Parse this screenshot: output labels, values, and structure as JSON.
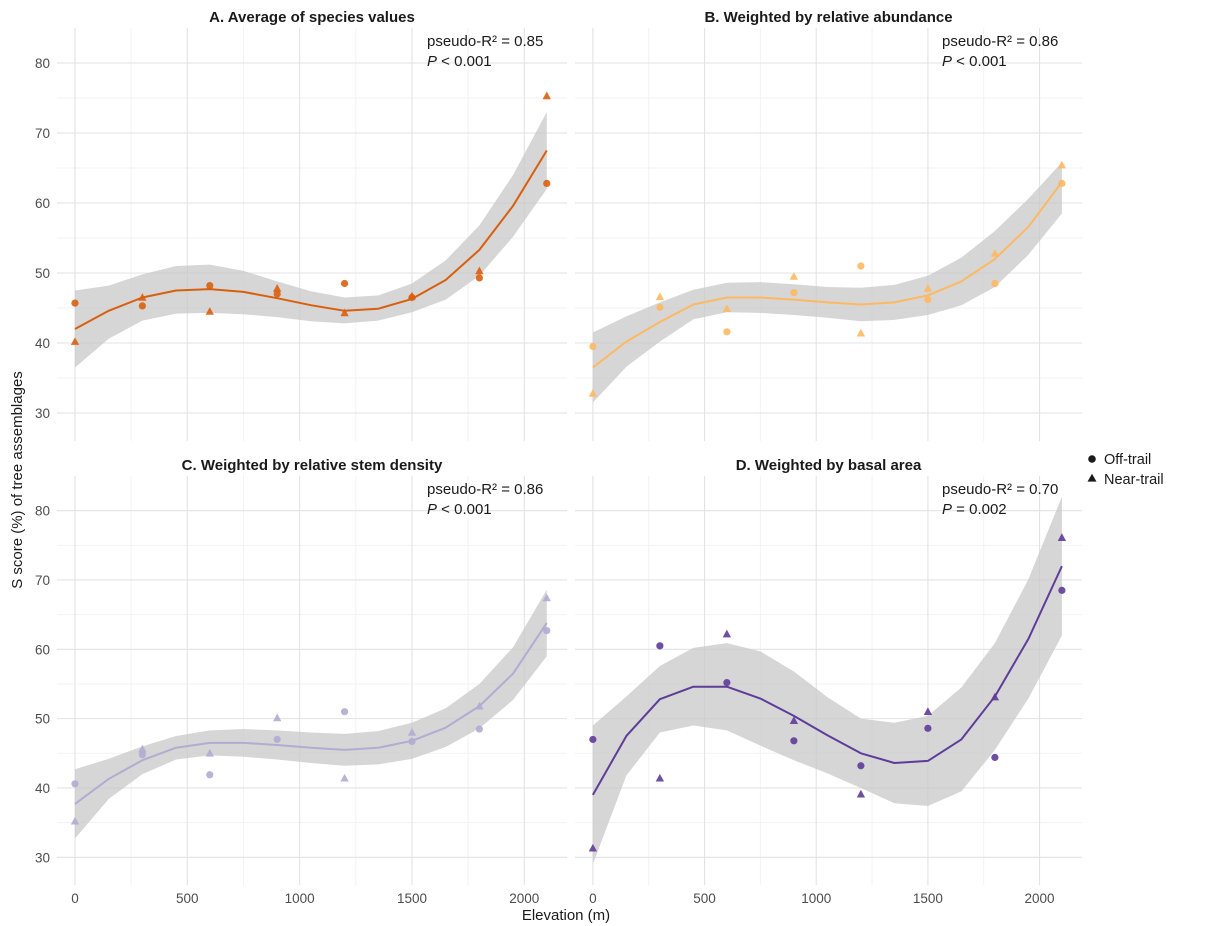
{
  "figure": {
    "ylabel": "S score (%) of tree assemblages",
    "xlabel": "Elevation (m)"
  },
  "legend": {
    "items": [
      {
        "label": "Off-trail",
        "shape": "circle"
      },
      {
        "label": "Near-trail",
        "shape": "triangle"
      }
    ]
  },
  "chart_data": [
    {
      "type": "scatter",
      "title": "A. Average of species values",
      "stat_r2": "pseudo-R² = 0.85",
      "stat_p_symbol": "P",
      "stat_p_rest": " < 0.001",
      "color": "#d95f0e",
      "xlim": [
        -80,
        2190
      ],
      "ylim": [
        26,
        85
      ],
      "xticks": [
        0,
        500,
        1000,
        1500,
        2000
      ],
      "yticks": [
        30,
        40,
        50,
        60,
        70,
        80
      ],
      "series": [
        {
          "name": "Off-trail",
          "x": [
            0,
            300,
            600,
            900,
            1200,
            1500,
            1800,
            2100
          ],
          "y": [
            45.7,
            45.3,
            48.2,
            47.0,
            48.5,
            46.5,
            49.3,
            62.8
          ]
        },
        {
          "name": "Near-trail",
          "x": [
            0,
            300,
            600,
            900,
            1200,
            1500,
            1800,
            2100
          ],
          "y": [
            40.2,
            46.5,
            44.5,
            47.8,
            44.3,
            46.7,
            50.3,
            75.3
          ]
        }
      ],
      "fit": {
        "x": [
          0,
          150,
          300,
          450,
          600,
          750,
          900,
          1050,
          1200,
          1350,
          1500,
          1650,
          1800,
          1950,
          2100
        ],
        "y": [
          42.0,
          44.6,
          46.5,
          47.5,
          47.7,
          47.3,
          46.4,
          45.4,
          44.6,
          44.9,
          46.3,
          49.0,
          53.3,
          59.6,
          67.5
        ]
      },
      "band": {
        "upper": [
          47.5,
          48.2,
          49.8,
          51.0,
          51.2,
          50.3,
          48.8,
          47.4,
          46.5,
          46.8,
          48.5,
          51.8,
          56.8,
          64.0,
          73.0
        ],
        "lower": [
          36.5,
          40.6,
          43.2,
          44.2,
          44.3,
          44.1,
          43.7,
          43.1,
          42.8,
          43.2,
          44.4,
          46.2,
          49.6,
          55.2,
          62.0
        ]
      }
    },
    {
      "type": "scatter",
      "title": "B. Weighted by relative abundance",
      "stat_r2": "pseudo-R² = 0.86",
      "stat_p_symbol": "P",
      "stat_p_rest": " < 0.001",
      "color": "#fdb863",
      "xlim": [
        -80,
        2190
      ],
      "ylim": [
        26,
        85
      ],
      "xticks": [
        0,
        500,
        1000,
        1500,
        2000
      ],
      "yticks": [
        30,
        40,
        50,
        60,
        70,
        80
      ],
      "series": [
        {
          "name": "Off-trail",
          "x": [
            0,
            300,
            600,
            900,
            1200,
            1500,
            1800,
            2100
          ],
          "y": [
            39.5,
            45.1,
            41.6,
            47.2,
            51.0,
            46.2,
            48.5,
            62.8
          ]
        },
        {
          "name": "Near-trail",
          "x": [
            0,
            300,
            600,
            900,
            1200,
            1500,
            1800,
            2100
          ],
          "y": [
            32.8,
            46.6,
            44.9,
            49.5,
            41.4,
            47.8,
            52.8,
            65.4
          ]
        }
      ],
      "fit": {
        "x": [
          0,
          150,
          300,
          450,
          600,
          750,
          900,
          1050,
          1200,
          1350,
          1500,
          1650,
          1800,
          1950,
          2100
        ],
        "y": [
          36.5,
          40.2,
          43.0,
          45.5,
          46.5,
          46.5,
          46.2,
          45.8,
          45.5,
          45.8,
          46.8,
          48.8,
          52.0,
          56.6,
          63.0
        ]
      },
      "band": {
        "upper": [
          41.5,
          43.8,
          45.8,
          47.6,
          48.6,
          48.7,
          48.4,
          48.0,
          47.9,
          48.3,
          49.6,
          52.2,
          56.0,
          60.6,
          65.8
        ],
        "lower": [
          31.5,
          36.6,
          40.2,
          43.4,
          44.4,
          44.3,
          44.0,
          43.6,
          43.1,
          43.3,
          44.0,
          45.4,
          48.0,
          52.6,
          58.5
        ]
      }
    },
    {
      "type": "scatter",
      "title": "C. Weighted by relative stem density",
      "stat_r2": "pseudo-R² = 0.86",
      "stat_p_symbol": "P",
      "stat_p_rest": " < 0.001",
      "color": "#b2abd2",
      "xlim": [
        -80,
        2190
      ],
      "ylim": [
        26,
        85
      ],
      "xticks": [
        0,
        500,
        1000,
        1500,
        2000
      ],
      "yticks": [
        30,
        40,
        50,
        60,
        70,
        80
      ],
      "series": [
        {
          "name": "Off-trail",
          "x": [
            0,
            300,
            600,
            900,
            1200,
            1500,
            1800,
            2100
          ],
          "y": [
            40.6,
            44.8,
            41.9,
            47.0,
            51.0,
            46.7,
            48.5,
            62.7
          ]
        },
        {
          "name": "Near-trail",
          "x": [
            0,
            300,
            600,
            900,
            1200,
            1500,
            1800,
            2100
          ],
          "y": [
            35.2,
            45.6,
            45.0,
            50.1,
            41.4,
            48.0,
            51.8,
            67.4
          ]
        }
      ],
      "fit": {
        "x": [
          0,
          150,
          300,
          450,
          600,
          750,
          900,
          1050,
          1200,
          1350,
          1500,
          1650,
          1800,
          1950,
          2100
        ],
        "y": [
          37.7,
          41.3,
          44.0,
          45.8,
          46.5,
          46.5,
          46.2,
          45.8,
          45.5,
          45.8,
          46.8,
          48.7,
          51.8,
          56.5,
          63.8
        ]
      },
      "band": {
        "upper": [
          42.7,
          44.2,
          46.0,
          47.5,
          48.3,
          48.5,
          48.3,
          48.0,
          47.8,
          48.2,
          49.4,
          51.5,
          55.0,
          60.3,
          68.6
        ],
        "lower": [
          32.7,
          38.4,
          42.0,
          44.1,
          44.7,
          44.5,
          44.1,
          43.6,
          43.2,
          43.4,
          44.2,
          45.9,
          48.6,
          52.7,
          59.0
        ]
      }
    },
    {
      "type": "scatter",
      "title": "D. Weighted by basal area",
      "stat_r2": "pseudo-R² = 0.70",
      "stat_p_symbol": "P",
      "stat_p_rest": " = 0.002",
      "color": "#5e3c99",
      "xlim": [
        -80,
        2190
      ],
      "ylim": [
        26,
        85
      ],
      "xticks": [
        0,
        500,
        1000,
        1500,
        2000
      ],
      "yticks": [
        30,
        40,
        50,
        60,
        70,
        80
      ],
      "series": [
        {
          "name": "Off-trail",
          "x": [
            0,
            300,
            600,
            900,
            1200,
            1500,
            1800,
            2100
          ],
          "y": [
            47.0,
            60.5,
            55.2,
            46.8,
            43.2,
            48.6,
            44.4,
            68.5
          ]
        },
        {
          "name": "Near-trail",
          "x": [
            0,
            300,
            600,
            900,
            1200,
            1500,
            1800,
            2100
          ],
          "y": [
            31.3,
            41.4,
            62.2,
            49.7,
            39.1,
            51.0,
            53.1,
            76.1
          ]
        }
      ],
      "fit": {
        "x": [
          0,
          150,
          300,
          450,
          600,
          750,
          900,
          1050,
          1200,
          1350,
          1500,
          1650,
          1800,
          1950,
          2100
        ],
        "y": [
          39.0,
          47.5,
          52.8,
          54.6,
          54.6,
          52.9,
          50.4,
          47.6,
          45.0,
          43.6,
          43.9,
          47.0,
          53.2,
          61.5,
          72.0
        ]
      },
      "band": {
        "upper": [
          49.0,
          53.2,
          57.6,
          60.2,
          60.9,
          59.7,
          56.8,
          53.1,
          50.0,
          49.4,
          50.4,
          54.5,
          60.9,
          70.1,
          82.0
        ],
        "lower": [
          29.0,
          41.8,
          48.0,
          49.0,
          48.3,
          46.1,
          44.0,
          42.1,
          40.0,
          37.8,
          37.4,
          39.5,
          45.5,
          52.9,
          62.0
        ]
      }
    }
  ]
}
